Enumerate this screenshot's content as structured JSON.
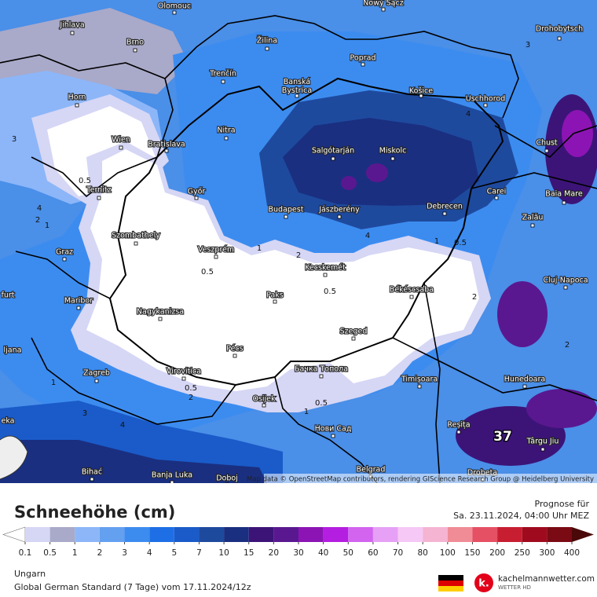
{
  "map": {
    "cities": [
      "Olomouc",
      "Nowy Sącz",
      "Jihlava",
      "Brno",
      "Drohobytsch",
      "Žilina",
      "Poprad",
      "Trenčín",
      "Banská Bystrica",
      "Košice",
      "Uschhorod",
      "Horn",
      "Nitra",
      "Chust",
      "Wien",
      "Bratislava",
      "Salgótarján",
      "Miskolc",
      "Carei",
      "Baia Mare",
      "Ternitz",
      "Győr",
      "Budapest",
      "Jászberény",
      "Debrecen",
      "Zalău",
      "Szombathely",
      "Graz",
      "Veszprém",
      "Kecskemét",
      "Cluj-Napoca",
      "Békéscsaba",
      "Paks",
      "Maribor",
      "Nagykanizsa",
      "Szeged",
      "Pécs",
      "Zagreb",
      "Virovitica",
      "Бачка Топола",
      "Timișoara",
      "Hunedoara",
      "Osijek",
      "Reșița",
      "Нови Сад",
      "Târgu Jiu",
      "Bihać",
      "Banja Luka",
      "Doboj",
      "Belgrad",
      "Drobeta",
      "furt",
      "ljana",
      "eka"
    ],
    "contour_labels": [
      0.5,
      4,
      2,
      1,
      3,
      1,
      2,
      0.5,
      0.5,
      4,
      1,
      0.5,
      2,
      2,
      0.5,
      2,
      1,
      0.5,
      1,
      3,
      4,
      4,
      3
    ],
    "max_label": "37",
    "attribution": "Map data © OpenStreetMap contributors, rendering GIScience Research Group @ Heidelberg University"
  },
  "legend": {
    "title": "Schneehöhe (cm)",
    "forecast_label": "Prognose für",
    "forecast_time": "Sa. 23.11.2024, 04:00 Uhr MEZ",
    "levels": [
      0.1,
      0.5,
      1,
      2,
      3,
      4,
      5,
      7,
      10,
      15,
      20,
      30,
      40,
      50,
      60,
      70,
      80,
      100,
      150,
      200,
      250,
      300,
      400
    ],
    "under_color": "#ffffff",
    "colors": [
      "#d6d6f5",
      "#a9a9c9",
      "#8cb6f8",
      "#64a0f0",
      "#3c8cf0",
      "#1e6fe6",
      "#1a5bc9",
      "#1e4a9e",
      "#1a2f80",
      "#3c1478",
      "#5a1890",
      "#8c14b4",
      "#b41ee0",
      "#d264f0",
      "#e6a0f5",
      "#f5c8f5",
      "#f5b4d2",
      "#f08c96",
      "#e65064",
      "#c81e32",
      "#a00a1e",
      "#7a0a14"
    ],
    "over_color": "#4a0808"
  },
  "footer": {
    "region": "Ungarn",
    "model": "Global German Standard (7 Tage) vom 17.11.2024/12z",
    "brand": "kachelmannwetter.com",
    "brand_sub": "WETTER HD"
  }
}
